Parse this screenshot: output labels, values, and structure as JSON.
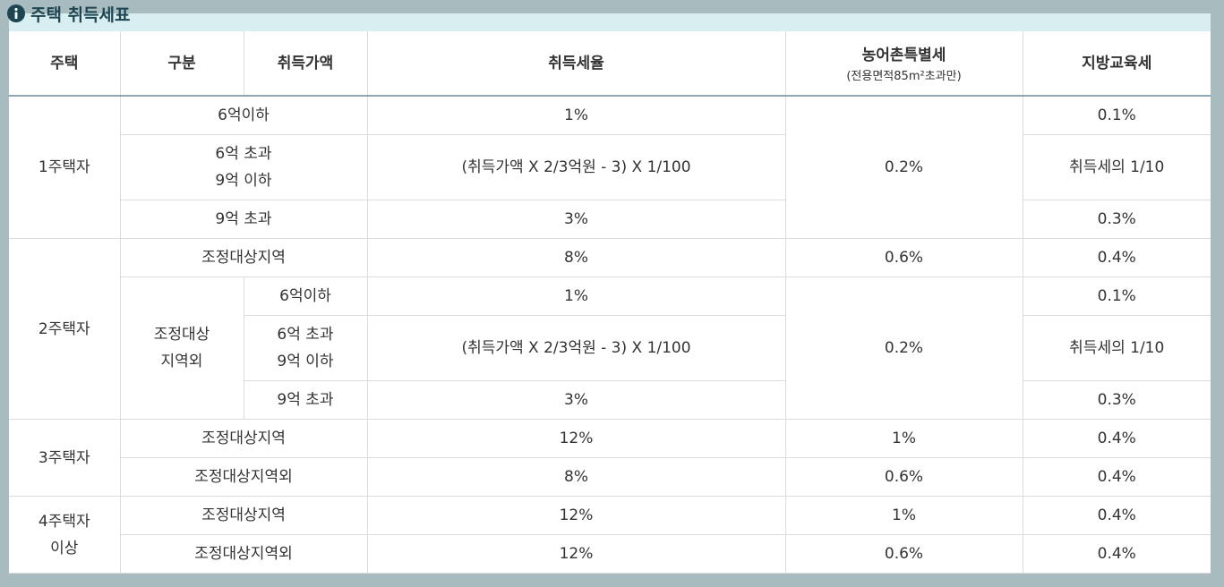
{
  "header": {
    "title": "주택 취득세표"
  },
  "table": {
    "columns": [
      "주택",
      "구분",
      "취득가액",
      "취득세율",
      {
        "name": "농어촌특별세",
        "note": "(전용면적85m²초과만)"
      },
      "지방교육세"
    ],
    "rows": [
      [
        "1주택자",
        "6억이하",
        "1%",
        "0.2%",
        "0.1%"
      ],
      [
        [
          "6억 초과",
          "9억 이하"
        ],
        "(취득가액 X 2/3억원 - 3) X 1/100",
        "취득세의 1/10"
      ],
      [
        "9억 초과",
        "3%",
        "0.3%"
      ],
      [
        "2주택자",
        "조정대상지역",
        "8%",
        "0.6%",
        "0.4%"
      ],
      [
        [
          "조정대상",
          "지역외"
        ],
        "6억이하",
        "1%",
        "0.2%",
        "0.1%"
      ],
      [
        [
          "6억 초과",
          "9억 이하"
        ],
        "(취득가액 X 2/3억원 - 3) X 1/100",
        "취득세의 1/10"
      ],
      [
        "9억 초과",
        "3%",
        "0.3%"
      ],
      [
        "3주택자",
        "조정대상지역",
        "12%",
        "1%",
        "0.4%"
      ],
      [
        "조정대상지역외",
        "8%",
        "0.6%",
        "0.4%"
      ],
      [
        [
          "4주택자",
          "이상"
        ],
        "조정대상지역",
        "12%",
        "1%",
        "0.4%"
      ],
      [
        "조정대상지역외",
        "12%",
        "0.6%",
        "0.4%"
      ]
    ]
  }
}
